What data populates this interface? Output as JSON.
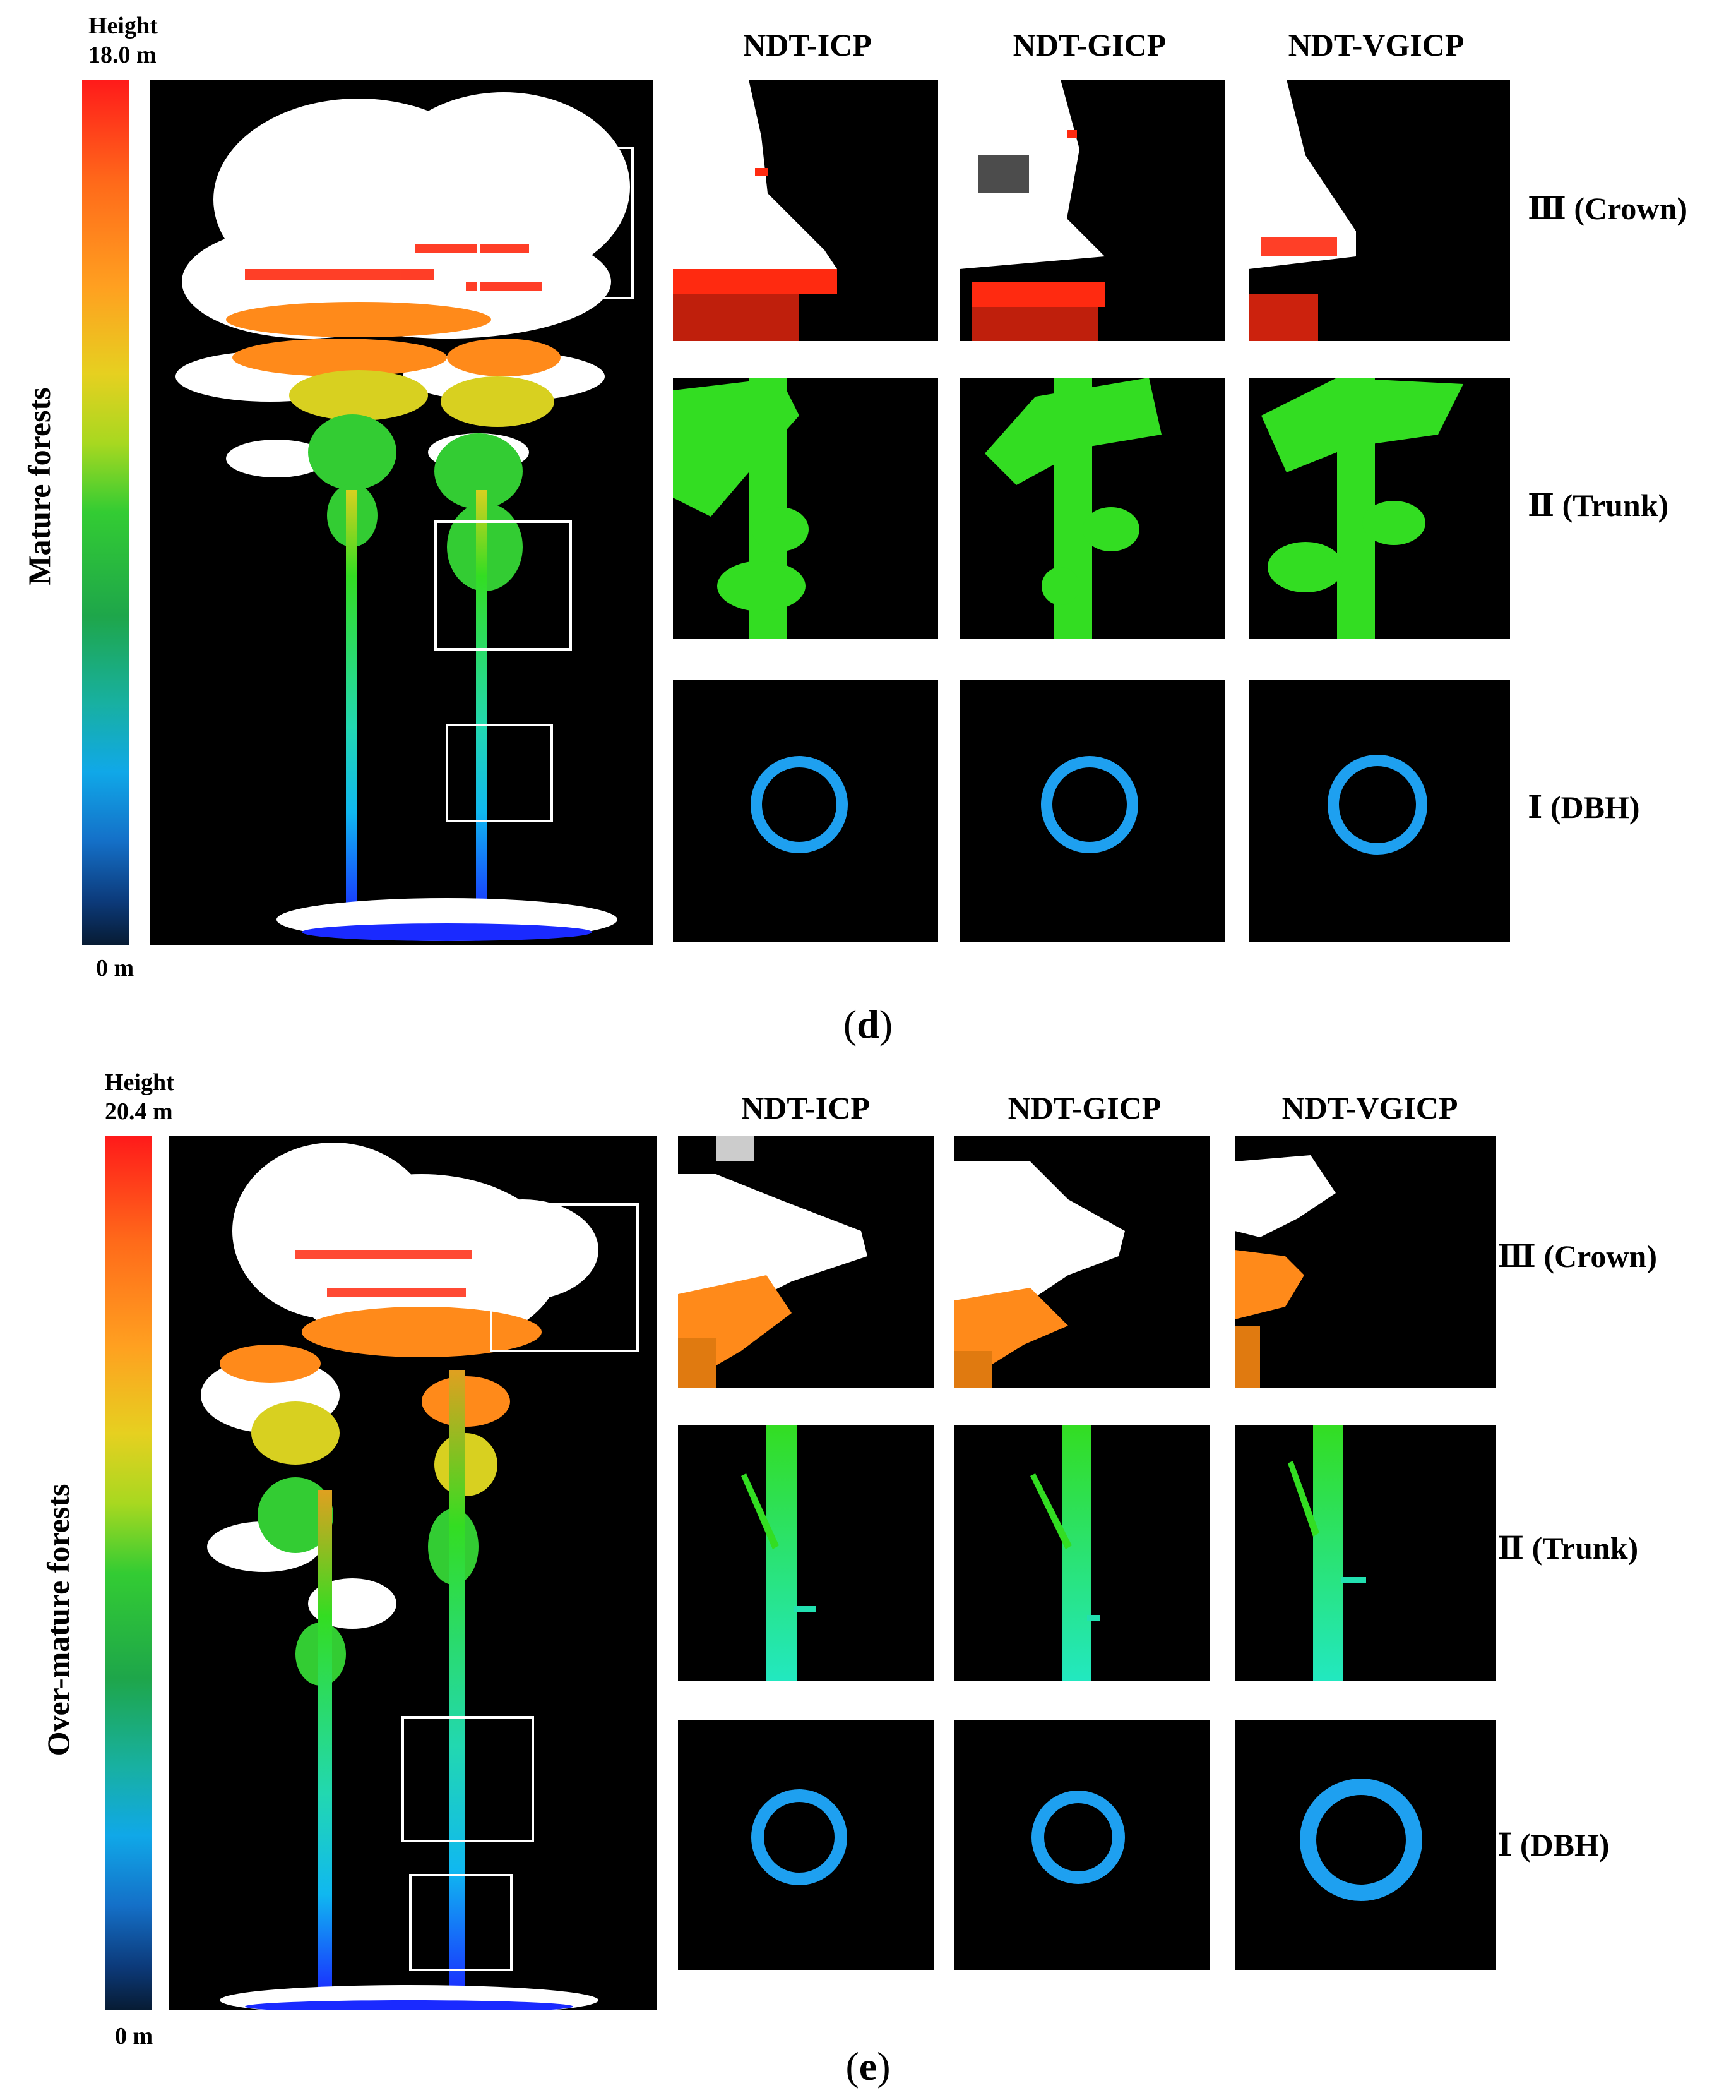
{
  "panels": [
    {
      "id": "d",
      "caption_open": "(",
      "caption_letter": "d",
      "caption_close": ")",
      "side_title": "Mature forests",
      "colorbar": {
        "title": "Height",
        "max_label": "18.0 m",
        "min_label": "0 m"
      },
      "columns": [
        "NDT-ICP",
        "NDT-GICP",
        "NDT-VGICP"
      ],
      "rows": [
        "Ⅲ (Crown)",
        "Ⅱ (Trunk)",
        "Ⅰ (DBH)"
      ]
    },
    {
      "id": "e",
      "caption_open": "(",
      "caption_letter": "e",
      "caption_close": ")",
      "side_title": "Over-mature forests",
      "colorbar": {
        "title": "Height",
        "max_label": "20.4 m",
        "min_label": "0 m"
      },
      "columns": [
        "NDT-ICP",
        "NDT-GICP",
        "NDT-VGICP"
      ],
      "rows": [
        "Ⅲ (Crown)",
        "Ⅱ (Trunk)",
        "Ⅰ (DBH)"
      ]
    }
  ],
  "colors": {
    "background": "#000000",
    "canopy": "#ffffff",
    "crown_red": "#ff2a10",
    "crown_orange": "#ff8a1a",
    "trunk_green": "#33dd22",
    "trunk_cyan": "#22e0b0",
    "dbh_ring": "#1ea0f0",
    "ground_blue": "#1a2aff",
    "roi_box": "#ffffff"
  }
}
